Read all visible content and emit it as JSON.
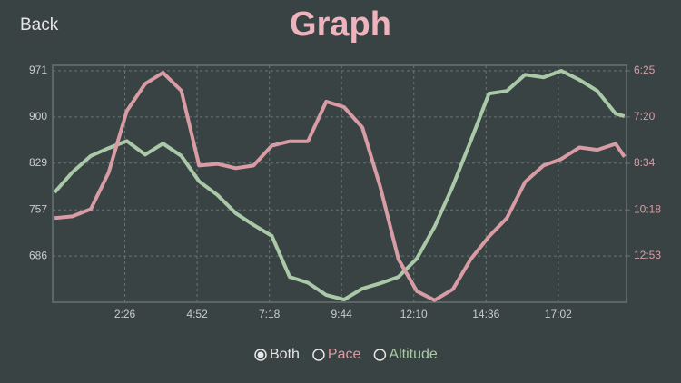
{
  "header": {
    "back": "Back"
  },
  "chart_data": {
    "type": "line",
    "title": "Graph",
    "x": [
      4,
      40,
      77,
      113,
      150,
      187,
      223,
      260,
      296,
      333,
      370,
      406,
      443,
      479,
      516,
      553,
      589,
      626,
      662,
      699,
      736,
      772,
      809,
      845,
      882,
      918,
      955,
      992,
      1028,
      1065,
      1101,
      1138,
      1156
    ],
    "xlim": [
      0,
      1160
    ],
    "xticks": [
      {
        "value": 146,
        "label": "2:26"
      },
      {
        "value": 292,
        "label": "4:52"
      },
      {
        "value": 438,
        "label": "7:18"
      },
      {
        "value": 584,
        "label": "9:44"
      },
      {
        "value": 730,
        "label": "12:10"
      },
      {
        "value": 876,
        "label": "14:36"
      },
      {
        "value": 1022,
        "label": "17:02"
      }
    ],
    "ylim": [
      615,
      971
    ],
    "yticks": [
      686,
      757,
      829,
      900,
      971
    ],
    "y2lim": [
      1033,
      385
    ],
    "y2scale": "reciprocal",
    "y2ticks": [
      {
        "value": 773,
        "label": "12:53"
      },
      {
        "value": 618,
        "label": "10:18"
      },
      {
        "value": 514,
        "label": "8:34"
      },
      {
        "value": 440,
        "label": "7:20"
      },
      {
        "value": 385,
        "label": "6:25"
      }
    ],
    "grid": true,
    "series": [
      {
        "name": "Altitude",
        "color": "#a9c9a9",
        "values": [
          784,
          815,
          840,
          852,
          863,
          842,
          859,
          840,
          801,
          780,
          752,
          734,
          717,
          654,
          645,
          626,
          619,
          636,
          644,
          654,
          682,
          731,
          794,
          863,
          936,
          940,
          965,
          961,
          971,
          957,
          940,
          905,
          901
        ]
      },
      {
        "name": "Pace",
        "color": "#d89ca5",
        "axis": "y2",
        "values": [
          641,
          636,
          616,
          532,
          432,
          399,
          387,
          407,
          518,
          515,
          523,
          518,
          483,
          476,
          476,
          420,
          427,
          455,
          561,
          787,
          956,
          1018,
          944,
          787,
          699,
          641,
          551,
          518,
          506,
          486,
          490,
          480,
          502
        ]
      }
    ]
  },
  "controls": {
    "options": [
      "Both",
      "Pace",
      "Altitude"
    ],
    "selected": 0
  }
}
